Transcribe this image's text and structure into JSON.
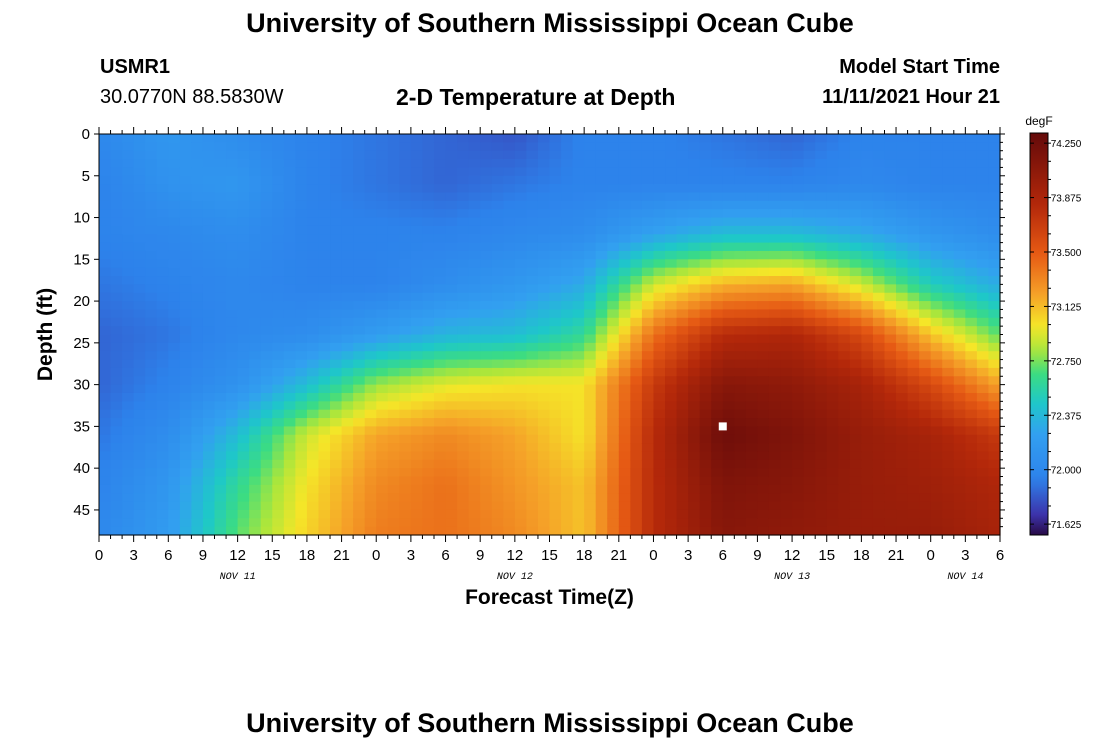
{
  "header": {
    "title": "University of Southern Mississippi Ocean Cube",
    "station_id": "USMR1",
    "coordinates": "30.0770N  88.5830W",
    "plot_title": "2-D Temperature at Depth",
    "model_start_label": "Model Start Time",
    "model_start_value": "11/11/2021 Hour 21"
  },
  "footer": {
    "title": "University of Southern Mississippi Ocean Cube"
  },
  "chart_data": {
    "type": "heatmap",
    "xlabel": "Forecast Time(Z)",
    "ylabel": "Depth (ft)",
    "y_ticks": [
      "0",
      "5",
      "10",
      "15",
      "20",
      "25",
      "30",
      "35",
      "40",
      "45"
    ],
    "y_range": [
      0,
      48
    ],
    "x_ticks": [
      "0",
      "3",
      "6",
      "9",
      "12",
      "15",
      "18",
      "21",
      "0",
      "3",
      "6",
      "9",
      "12",
      "15",
      "18",
      "21",
      "0",
      "3",
      "6",
      "9",
      "12",
      "15",
      "18",
      "21",
      "0",
      "3",
      "6"
    ],
    "x_range_hours": [
      0,
      78
    ],
    "date_labels": [
      {
        "label": "NOV 11",
        "hour": 12
      },
      {
        "label": "NOV 12",
        "hour": 36
      },
      {
        "label": "NOV 13",
        "hour": 60
      },
      {
        "label": "NOV 14",
        "hour": 75
      }
    ],
    "colorbar": {
      "unit": "degF",
      "min": 71.55,
      "max": 74.32,
      "tick_labels": [
        "74.250",
        "73.875",
        "73.500",
        "73.125",
        "72.750",
        "72.375",
        "72.000",
        "71.625"
      ],
      "tick_values": [
        74.25,
        73.875,
        73.5,
        73.125,
        72.75,
        72.375,
        72.0,
        71.625
      ]
    },
    "marker": {
      "hour": 54,
      "depth_ft": 35
    },
    "temperature_grid": {
      "hours": [
        0,
        6,
        12,
        18,
        24,
        30,
        36,
        42,
        48,
        54,
        60,
        66,
        72,
        78
      ],
      "depths_ft": [
        0,
        6,
        12,
        18,
        24,
        30,
        36,
        42,
        48
      ],
      "values_degF": [
        [
          72.0,
          72.15,
          72.05,
          71.95,
          71.9,
          71.85,
          71.8,
          71.95,
          71.95,
          71.9,
          71.85,
          71.95,
          71.95,
          71.95
        ],
        [
          71.95,
          72.1,
          72.15,
          71.95,
          71.9,
          71.85,
          71.9,
          71.95,
          71.95,
          71.95,
          71.95,
          72.0,
          71.95,
          71.95
        ],
        [
          71.95,
          72.0,
          72.05,
          71.95,
          71.95,
          71.95,
          72.0,
          72.05,
          72.25,
          72.4,
          72.4,
          72.3,
          72.15,
          72.05
        ],
        [
          71.9,
          71.95,
          72.0,
          71.95,
          71.95,
          72.05,
          72.15,
          72.3,
          72.9,
          73.15,
          73.2,
          72.9,
          72.5,
          72.3
        ],
        [
          71.85,
          71.9,
          72.0,
          72.05,
          72.2,
          72.35,
          72.4,
          72.6,
          73.4,
          73.8,
          73.85,
          73.6,
          73.1,
          72.7
        ],
        [
          71.85,
          71.95,
          72.1,
          72.4,
          72.8,
          72.95,
          73.0,
          73.0,
          73.7,
          74.1,
          74.05,
          73.9,
          73.6,
          73.2
        ],
        [
          71.9,
          72.05,
          72.4,
          72.9,
          73.2,
          73.3,
          73.2,
          73.0,
          73.8,
          74.25,
          74.15,
          74.0,
          73.9,
          73.7
        ],
        [
          71.95,
          72.15,
          72.6,
          73.0,
          73.3,
          73.4,
          73.25,
          73.1,
          73.8,
          74.15,
          74.1,
          74.0,
          73.95,
          73.85
        ],
        [
          72.0,
          72.2,
          72.7,
          73.05,
          73.35,
          73.4,
          73.3,
          73.1,
          73.8,
          74.1,
          74.05,
          74.0,
          74.0,
          73.9
        ]
      ]
    }
  }
}
